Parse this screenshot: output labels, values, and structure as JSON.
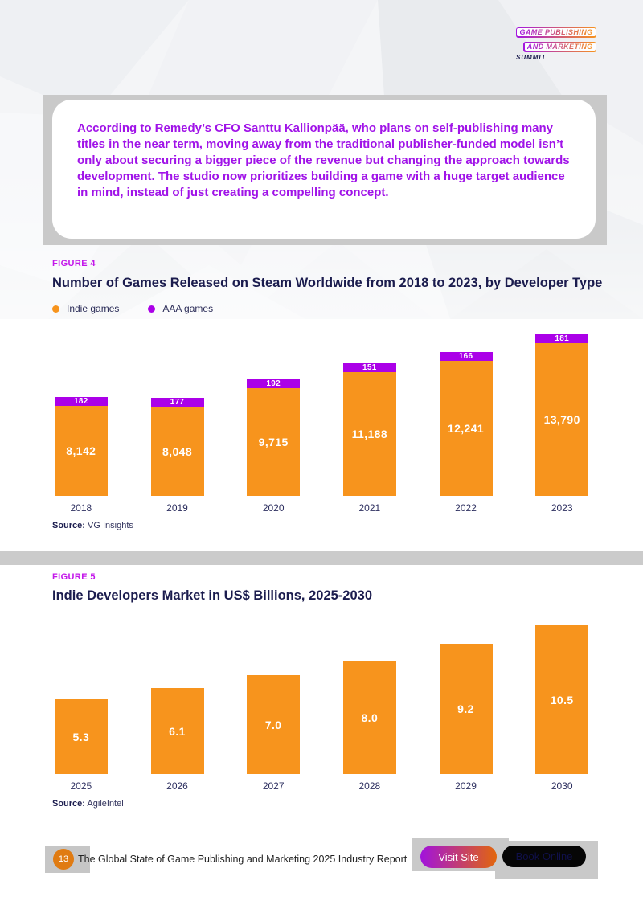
{
  "logo": {
    "line1": "GAME PUBLISHING",
    "line2": "AND MARKETING",
    "line3": "SUMMIT"
  },
  "quote": {
    "text": "According to Remedy’s CFO Santtu Kallionpää, who plans on self-publishing many titles in the near term, moving away from the traditional publisher-funded model isn’t only about securing a bigger piece of the revenue but changing the approach towards development. The studio now prioritizes building a game with a huge target audience in mind, instead of just creating a compelling concept."
  },
  "colors": {
    "orange": "#f7941d",
    "purple": "#ab00e8",
    "figure_label_magenta": "#c316ea",
    "quote_purple": "#a013e8",
    "navy": "#1b1c4e"
  },
  "chart_data": [
    {
      "type": "bar",
      "stacked": true,
      "figure_label": "FIGURE 4",
      "title": "Number of Games Released on Steam Worldwide from 2018 to 2023, by Developer Type",
      "categories": [
        "2018",
        "2019",
        "2020",
        "2021",
        "2022",
        "2023"
      ],
      "series": [
        {
          "name": "Indie games",
          "color": "#f7941d",
          "values": [
            8142,
            8048,
            9715,
            11188,
            12241,
            13790
          ],
          "labels": [
            "8,142",
            "8,048",
            "9,715",
            "11,188",
            "12,241",
            "13,790"
          ]
        },
        {
          "name": "AAA games",
          "color": "#ab00e8",
          "values": [
            182,
            177,
            192,
            151,
            166,
            181
          ],
          "labels": [
            "182",
            "177",
            "192",
            "151",
            "166",
            "181"
          ]
        }
      ],
      "legend_position": "top-left",
      "grid": false,
      "source_label": "Source:",
      "source": "VG Insights"
    },
    {
      "type": "bar",
      "stacked": false,
      "figure_label": "FIGURE 5",
      "title": "Indie Developers Market in US$ Billions, 2025-2030",
      "categories": [
        "2025",
        "2026",
        "2027",
        "2028",
        "2029",
        "2030"
      ],
      "series": [
        {
          "name": "Indie developers market (US$ billions)",
          "color": "#f7941d",
          "values": [
            5.3,
            6.1,
            7.0,
            8.0,
            9.2,
            10.5
          ],
          "labels": [
            "5.3",
            "6.1",
            "7.0",
            "8.0",
            "9.2",
            "10.5"
          ]
        }
      ],
      "grid": false,
      "source_label": "Source:",
      "source": "AgileIntel"
    }
  ],
  "footer": {
    "page_number": "13",
    "report_title": "The Global State of Game Publishing and Marketing 2025 Industry Report",
    "visit_site_label": "Visit Site",
    "book_online_label": "Book Online"
  }
}
